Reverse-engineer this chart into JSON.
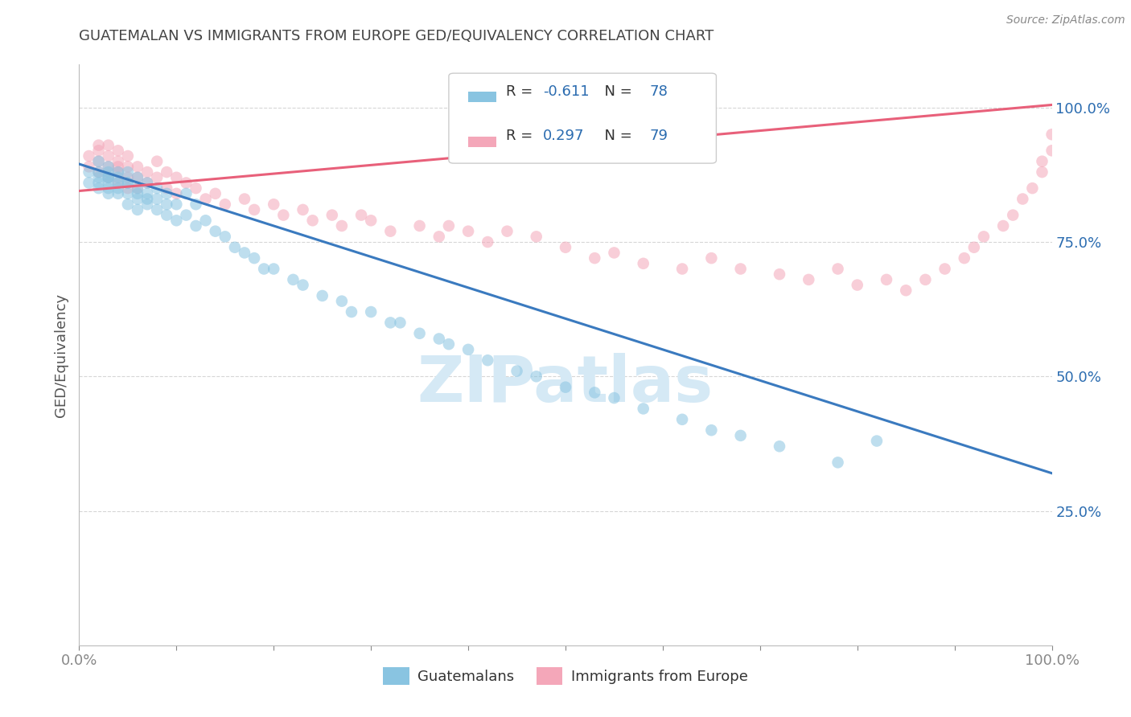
{
  "title": "GUATEMALAN VS IMMIGRANTS FROM EUROPE GED/EQUIVALENCY CORRELATION CHART",
  "source": "Source: ZipAtlas.com",
  "ylabel": "GED/Equivalency",
  "ytick_labels": [
    "25.0%",
    "50.0%",
    "75.0%",
    "100.0%"
  ],
  "ytick_values": [
    0.25,
    0.5,
    0.75,
    1.0
  ],
  "xlim": [
    0.0,
    1.0
  ],
  "ylim": [
    0.0,
    1.08
  ],
  "legend_r1_label": "R = ",
  "legend_r1_val": "-0.611",
  "legend_n1_label": "N = ",
  "legend_n1_val": "78",
  "legend_r2_label": "R = ",
  "legend_r2_val": "0.297",
  "legend_n2_label": "N = ",
  "legend_n2_val": "79",
  "blue_color": "#89c4e1",
  "pink_color": "#f4a7b9",
  "blue_line_color": "#3a7abf",
  "pink_line_color": "#e8607a",
  "title_color": "#444444",
  "r_value_color": "#2b6cb0",
  "watermark_color": "#d5e9f5",
  "legend_label_blue": "Guatemalans",
  "legend_label_pink": "Immigrants from Europe",
  "blue_trend_x0": 0.0,
  "blue_trend_y0": 0.895,
  "blue_trend_x1": 1.0,
  "blue_trend_y1": 0.32,
  "pink_trend_x0": 0.0,
  "pink_trend_y0": 0.845,
  "pink_trend_x1": 1.0,
  "pink_trend_y1": 1.005,
  "blue_scatter_x": [
    0.01,
    0.01,
    0.02,
    0.02,
    0.02,
    0.02,
    0.02,
    0.03,
    0.03,
    0.03,
    0.03,
    0.03,
    0.03,
    0.03,
    0.04,
    0.04,
    0.04,
    0.04,
    0.04,
    0.05,
    0.05,
    0.05,
    0.05,
    0.05,
    0.06,
    0.06,
    0.06,
    0.06,
    0.06,
    0.07,
    0.07,
    0.07,
    0.07,
    0.08,
    0.08,
    0.08,
    0.09,
    0.09,
    0.09,
    0.1,
    0.1,
    0.11,
    0.11,
    0.12,
    0.12,
    0.13,
    0.14,
    0.15,
    0.16,
    0.17,
    0.18,
    0.19,
    0.2,
    0.22,
    0.23,
    0.25,
    0.27,
    0.28,
    0.3,
    0.32,
    0.33,
    0.35,
    0.37,
    0.38,
    0.4,
    0.42,
    0.45,
    0.47,
    0.5,
    0.53,
    0.55,
    0.58,
    0.62,
    0.65,
    0.68,
    0.72,
    0.78,
    0.82
  ],
  "blue_scatter_y": [
    0.88,
    0.86,
    0.9,
    0.87,
    0.85,
    0.88,
    0.86,
    0.88,
    0.85,
    0.87,
    0.86,
    0.84,
    0.89,
    0.87,
    0.87,
    0.85,
    0.88,
    0.86,
    0.84,
    0.86,
    0.84,
    0.82,
    0.88,
    0.86,
    0.85,
    0.83,
    0.87,
    0.84,
    0.81,
    0.84,
    0.82,
    0.86,
    0.83,
    0.83,
    0.81,
    0.85,
    0.82,
    0.8,
    0.84,
    0.82,
    0.79,
    0.8,
    0.84,
    0.78,
    0.82,
    0.79,
    0.77,
    0.76,
    0.74,
    0.73,
    0.72,
    0.7,
    0.7,
    0.68,
    0.67,
    0.65,
    0.64,
    0.62,
    0.62,
    0.6,
    0.6,
    0.58,
    0.57,
    0.56,
    0.55,
    0.53,
    0.51,
    0.5,
    0.48,
    0.47,
    0.46,
    0.44,
    0.42,
    0.4,
    0.39,
    0.37,
    0.34,
    0.38
  ],
  "pink_scatter_x": [
    0.01,
    0.01,
    0.02,
    0.02,
    0.02,
    0.02,
    0.03,
    0.03,
    0.03,
    0.03,
    0.04,
    0.04,
    0.04,
    0.04,
    0.04,
    0.05,
    0.05,
    0.05,
    0.05,
    0.06,
    0.06,
    0.06,
    0.07,
    0.07,
    0.08,
    0.08,
    0.09,
    0.09,
    0.1,
    0.1,
    0.11,
    0.12,
    0.13,
    0.14,
    0.15,
    0.17,
    0.18,
    0.2,
    0.21,
    0.23,
    0.24,
    0.26,
    0.27,
    0.29,
    0.3,
    0.32,
    0.35,
    0.37,
    0.38,
    0.4,
    0.42,
    0.44,
    0.47,
    0.5,
    0.53,
    0.55,
    0.58,
    0.62,
    0.65,
    0.68,
    0.72,
    0.75,
    0.78,
    0.8,
    0.83,
    0.85,
    0.87,
    0.89,
    0.91,
    0.92,
    0.93,
    0.95,
    0.96,
    0.97,
    0.98,
    0.99,
    0.99,
    1.0,
    1.0
  ],
  "pink_scatter_y": [
    0.91,
    0.89,
    0.93,
    0.9,
    0.88,
    0.92,
    0.91,
    0.89,
    0.87,
    0.93,
    0.9,
    0.88,
    0.86,
    0.92,
    0.89,
    0.91,
    0.89,
    0.87,
    0.85,
    0.89,
    0.87,
    0.85,
    0.88,
    0.86,
    0.9,
    0.87,
    0.88,
    0.85,
    0.87,
    0.84,
    0.86,
    0.85,
    0.83,
    0.84,
    0.82,
    0.83,
    0.81,
    0.82,
    0.8,
    0.81,
    0.79,
    0.8,
    0.78,
    0.8,
    0.79,
    0.77,
    0.78,
    0.76,
    0.78,
    0.77,
    0.75,
    0.77,
    0.76,
    0.74,
    0.72,
    0.73,
    0.71,
    0.7,
    0.72,
    0.7,
    0.69,
    0.68,
    0.7,
    0.67,
    0.68,
    0.66,
    0.68,
    0.7,
    0.72,
    0.74,
    0.76,
    0.78,
    0.8,
    0.83,
    0.85,
    0.88,
    0.9,
    0.92,
    0.95
  ]
}
